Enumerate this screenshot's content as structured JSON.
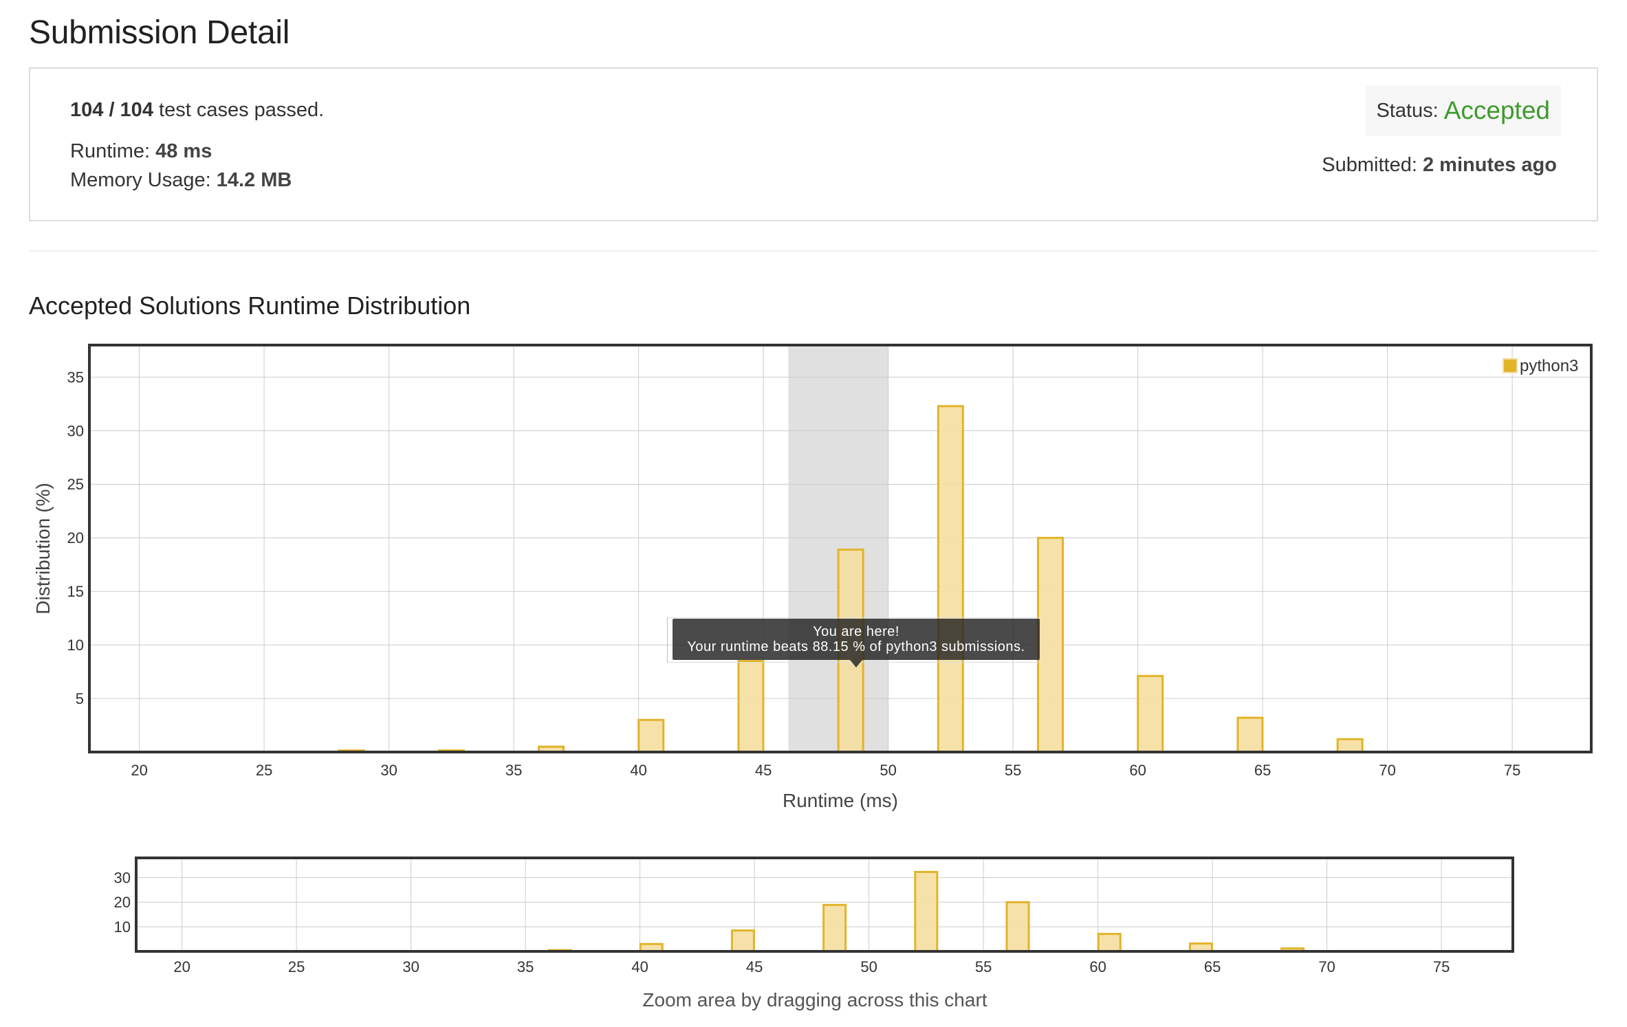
{
  "page": {
    "title": "Submission Detail"
  },
  "summary": {
    "tests_passed": "104 / 104",
    "tests_suffix": "test cases passed.",
    "runtime_label": "Runtime:",
    "runtime_value": "48 ms",
    "memory_label": "Memory Usage:",
    "memory_value": "14.2 MB",
    "status_label": "Status:",
    "status_value": "Accepted",
    "submitted_label": "Submitted:",
    "submitted_value": "2 minutes ago"
  },
  "distribution": {
    "section_title": "Accepted Solutions Runtime Distribution",
    "tooltip_title": "You are here!",
    "tooltip_text": "Your runtime beats 88.15 % of python3 submissions.",
    "navigator_caption": "Zoom area by dragging across this chart"
  },
  "colors": {
    "accepted": "#3e9a2d",
    "bar_fill": "#f5dfa0",
    "bar_stroke": "#e2b42a",
    "highlight_band": "#e0e0e0"
  },
  "chart_data": [
    {
      "type": "bar",
      "xlabel": "Runtime (ms)",
      "ylabel": "Distribution (%)",
      "xlim": [
        18,
        78
      ],
      "ylim": [
        0,
        38
      ],
      "xticks": [
        20,
        25,
        30,
        35,
        40,
        45,
        50,
        55,
        60,
        65,
        70,
        75
      ],
      "yticks": [
        5,
        10,
        15,
        20,
        25,
        30,
        35
      ],
      "grid": true,
      "legend_position": "top-right",
      "highlight_range": [
        46,
        50
      ],
      "series": [
        {
          "name": "python3",
          "x": [
            28.5,
            32.5,
            36.5,
            40.5,
            44.5,
            48.5,
            52.5,
            56.5,
            60.5,
            64.5,
            68.5
          ],
          "values": [
            0.15,
            0.15,
            0.5,
            3.0,
            8.5,
            18.9,
            32.3,
            20.0,
            7.1,
            3.2,
            1.2
          ]
        }
      ]
    },
    {
      "type": "bar",
      "xlabel": "",
      "ylabel": "",
      "xlim": [
        18,
        78
      ],
      "ylim": [
        0,
        38
      ],
      "xticks": [
        20,
        25,
        30,
        35,
        40,
        45,
        50,
        55,
        60,
        65,
        70,
        75
      ],
      "yticks": [
        10,
        20,
        30
      ],
      "grid": true,
      "series": [
        {
          "name": "",
          "x": [
            28.5,
            32.5,
            36.5,
            40.5,
            44.5,
            48.5,
            52.5,
            56.5,
            60.5,
            64.5,
            68.5
          ],
          "values": [
            0.15,
            0.15,
            0.5,
            3.0,
            8.5,
            18.9,
            32.3,
            20.0,
            7.1,
            3.2,
            1.2
          ]
        }
      ]
    }
  ]
}
